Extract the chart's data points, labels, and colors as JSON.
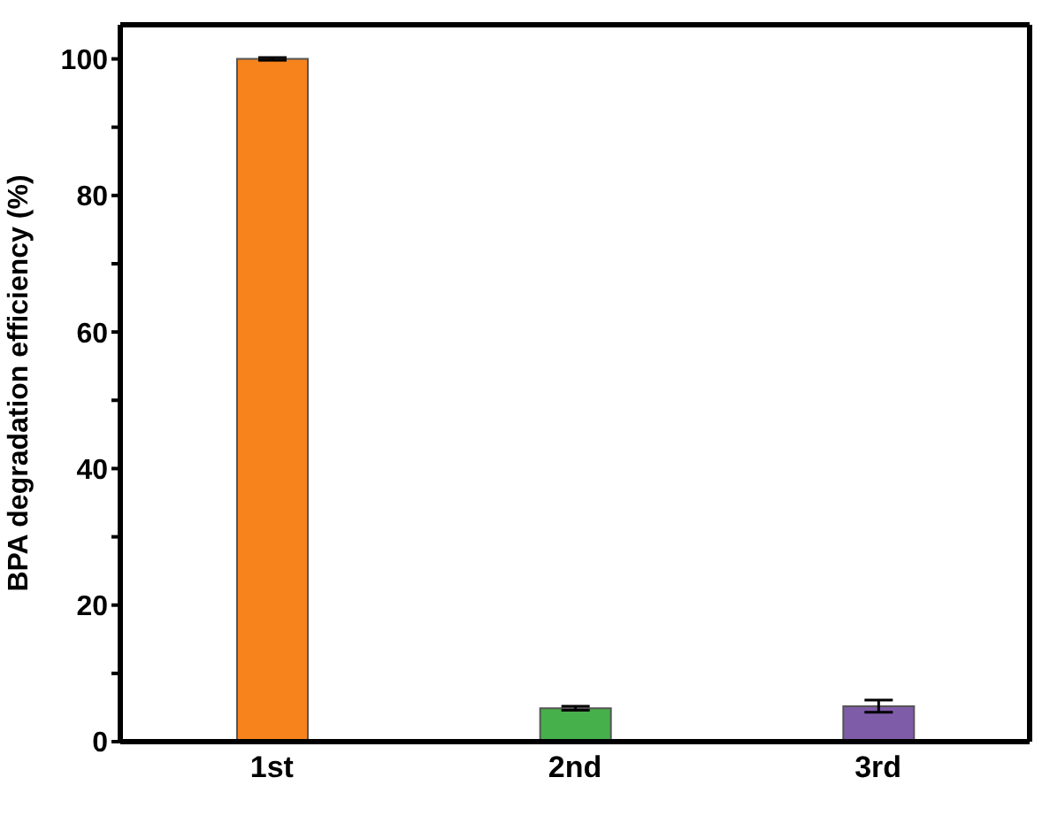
{
  "chart_data": {
    "type": "bar",
    "ylabel": "BPA degradation efficiency (%)",
    "categories": [
      "1st",
      "2nd",
      "3rd"
    ],
    "values": [
      100,
      4.9,
      5.2
    ],
    "errors": [
      0.2,
      0.3,
      0.9
    ],
    "colors": [
      "#f7831c",
      "#46b04a",
      "#7f5ca8"
    ],
    "ylim": [
      0,
      105
    ],
    "yticks": [
      0,
      {
        "value": 10,
        "label": null
      },
      20,
      {
        "value": 30,
        "label": null
      },
      40,
      {
        "value": 50,
        "label": null
      },
      60,
      {
        "value": 70,
        "label": null
      },
      80,
      {
        "value": 90,
        "label": null
      },
      100
    ],
    "grid": false,
    "legend": false
  }
}
